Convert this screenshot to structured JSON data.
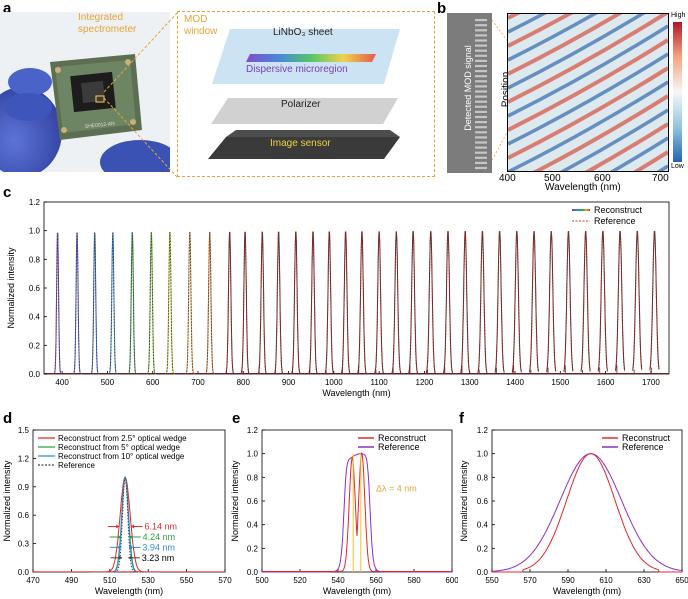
{
  "panel_a": {
    "letter": "a",
    "photo_label": "Integrated spectrometer",
    "pcb_text": "SHE0012-AN",
    "window_title": "MOD window",
    "layers": [
      "LiNbO₃ sheet",
      "Dispersive microregion",
      "Polarizer",
      "Image sensor"
    ]
  },
  "panel_b": {
    "letter": "b",
    "signal_label": "Detected MOD signal",
    "ylabel": "Position",
    "xlabel": "Wavelength (nm)",
    "xticks": [
      "400",
      "500",
      "600",
      "700"
    ],
    "colorbar_high": "High",
    "colorbar_low": "Low"
  },
  "panel_c": {
    "letter": "c",
    "ylabel": "Normalized intensity",
    "xlabel": "Wavelength (nm)",
    "yticks": [
      "0.0",
      "0.2",
      "0.4",
      "0.6",
      "0.8",
      "1.0",
      "1.2"
    ],
    "xticks": [
      "400",
      "500",
      "600",
      "700",
      "800",
      "900",
      "1000",
      "1100",
      "1200",
      "1300",
      "1400",
      "1500",
      "1600",
      "1700"
    ],
    "legend": [
      "Reconstruct",
      "Reference"
    ]
  },
  "panel_d": {
    "letter": "d",
    "ylabel": "Normalized  intensity",
    "xlabel": "Wavelength (nm)",
    "yticks": [
      "0.0",
      "0.3",
      "0.6",
      "0.9",
      "1.2",
      "1.5"
    ],
    "xticks": [
      "470",
      "490",
      "510",
      "530",
      "550",
      "570"
    ],
    "legend": [
      "Reconstruct from 2.5° optical wedge",
      "Reconstruct from 5° optical wedge",
      "Reconstruct from 10° optical wedge",
      "Reference"
    ],
    "fwhm": [
      "6.14 nm",
      "4.24 nm",
      "3.94 nm",
      "3.23 nm"
    ]
  },
  "panel_e": {
    "letter": "e",
    "ylabel": "Normalized intensity",
    "xlabel": "Wavelength (nm)",
    "yticks": [
      "0.0",
      "0.2",
      "0.4",
      "0.6",
      "0.8",
      "1.0",
      "1.2"
    ],
    "xticks": [
      "500",
      "520",
      "540",
      "560",
      "580",
      "600"
    ],
    "legend": [
      "Reconstruct",
      "Reference"
    ],
    "annotation": "Δλ = 4 nm"
  },
  "panel_f": {
    "letter": "f",
    "ylabel": "Normalized intensity",
    "xlabel": "Wavelength (nm)",
    "yticks": [
      "0.0",
      "0.2",
      "0.4",
      "0.6",
      "0.8",
      "1.0",
      "1.2"
    ],
    "xticks": [
      "550",
      "570",
      "590",
      "610",
      "630",
      "650"
    ],
    "legend": [
      "Reconstruct",
      "Reference"
    ]
  },
  "colors": {
    "reconstruct": "#e0282f",
    "reference": "#8b2fc9",
    "wedge5": "#2ea043",
    "wedge10": "#2b8fd6",
    "dashed": "#555555",
    "accent": "#e8a33a"
  },
  "chart_data": [
    {
      "type": "line",
      "panel": "c",
      "xlabel": "Wavelength (nm)",
      "ylabel": "Normalized intensity",
      "xlim": [
        360,
        1740
      ],
      "ylim": [
        0,
        1.2
      ],
      "peaks": [
        390,
        433,
        472,
        512,
        555,
        597,
        638,
        682,
        726,
        770,
        804,
        842,
        878,
        916,
        954,
        990,
        1026,
        1062,
        1100,
        1138,
        1175,
        1214,
        1252,
        1290,
        1328,
        1366,
        1404,
        1442,
        1480,
        1518,
        1556,
        1594,
        1632,
        1670,
        1708
      ],
      "series": [
        {
          "name": "Reconstruct"
        },
        {
          "name": "Reference"
        }
      ]
    },
    {
      "type": "line",
      "panel": "d",
      "xlabel": "Wavelength (nm)",
      "ylabel": "Normalized  intensity",
      "xlim": [
        470,
        570
      ],
      "ylim": [
        0,
        1.5
      ],
      "center": 518,
      "series": [
        {
          "name": "Reconstruct from 2.5° optical wedge",
          "fwhm": 6.14
        },
        {
          "name": "Reconstruct from 5° optical wedge",
          "fwhm": 4.24
        },
        {
          "name": "Reconstruct from 10° optical wedge",
          "fwhm": 3.94
        },
        {
          "name": "Reference",
          "fwhm": 3.23
        }
      ]
    },
    {
      "type": "line",
      "panel": "e",
      "xlabel": "Wavelength (nm)",
      "ylabel": "Normalized intensity",
      "xlim": [
        500,
        600
      ],
      "ylim": [
        0,
        1.2
      ],
      "peaks_nm": [
        548,
        552
      ],
      "separation": "Δλ = 4 nm",
      "series": [
        {
          "name": "Reconstruct"
        },
        {
          "name": "Reference"
        }
      ]
    },
    {
      "type": "line",
      "panel": "f",
      "xlabel": "Wavelength (nm)",
      "ylabel": "Normalized intensity",
      "xlim": [
        550,
        650
      ],
      "ylim": [
        0,
        1.2
      ],
      "center": 602,
      "series": [
        {
          "name": "Reconstruct"
        },
        {
          "name": "Reference"
        }
      ]
    }
  ]
}
